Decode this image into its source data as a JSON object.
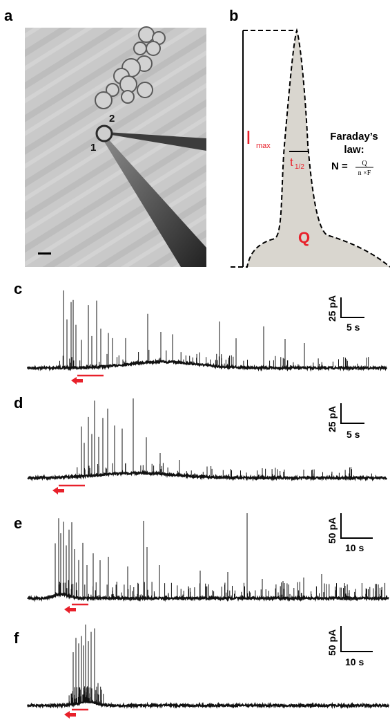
{
  "figure": {
    "panel_labels": {
      "a": "a",
      "b": "b",
      "c": "c",
      "d": "d",
      "e": "e",
      "f": "f"
    },
    "panel_a": {
      "pipette_1": "1",
      "pipette_2": "2"
    },
    "panel_b": {
      "imax_main": "I",
      "imax_sub": "max",
      "t_main": "t",
      "t_sub": "1/2",
      "q_label": "Q",
      "law_line1": "Faraday’s",
      "law_line2": "law:",
      "eq_lhs": "N =",
      "eq_num": "Q",
      "eq_den": "n ×F",
      "colors": {
        "fill": "#d9d6cf",
        "red": "#e8202a"
      }
    },
    "panel_c": {
      "scale_y": "25 pA",
      "scale_x": "5 s"
    },
    "panel_d": {
      "scale_y": "25 pA",
      "scale_x": "5 s"
    },
    "panel_e": {
      "scale_y": "50 pA",
      "scale_x": "10 s"
    },
    "panel_f": {
      "scale_y": "50 pA",
      "scale_x": "10 s"
    },
    "colors": {
      "trace": "#111111",
      "stimulus": "#e8202a"
    }
  }
}
